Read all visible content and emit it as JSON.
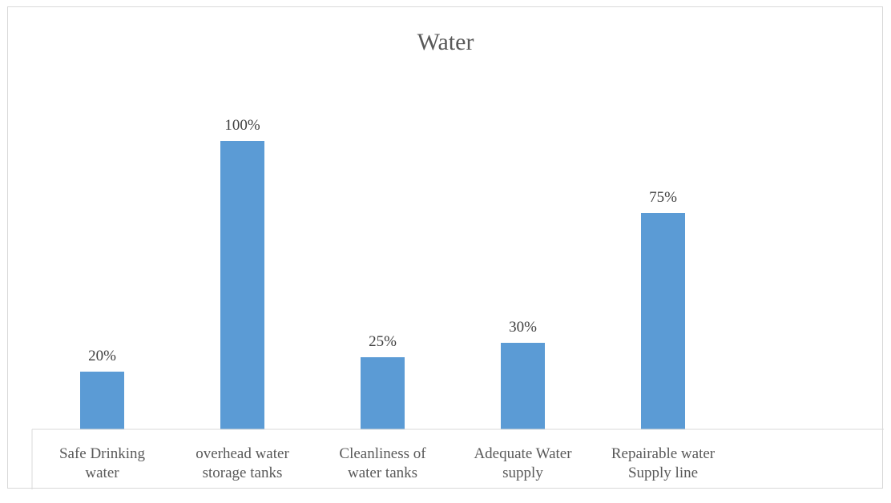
{
  "chart_data": {
    "type": "bar",
    "title": "Water",
    "xlabel": "",
    "ylabel": "",
    "categories": [
      [
        "Safe Drinking",
        "water"
      ],
      [
        "overhead water",
        "storage tanks"
      ],
      [
        "Cleanliness of",
        "water tanks"
      ],
      [
        "Adequate Water",
        "supply"
      ],
      [
        "Repairable water",
        "Supply line"
      ]
    ],
    "values": [
      20,
      100,
      25,
      30,
      75
    ],
    "data_labels": [
      "20%",
      "100%",
      "25%",
      "30%",
      "75%"
    ],
    "value_unit": "%",
    "ylim": [
      0,
      100
    ],
    "grid": false,
    "legend": "none",
    "bar_color": "#5b9bd5",
    "axis_color": "#d9d9d9"
  }
}
